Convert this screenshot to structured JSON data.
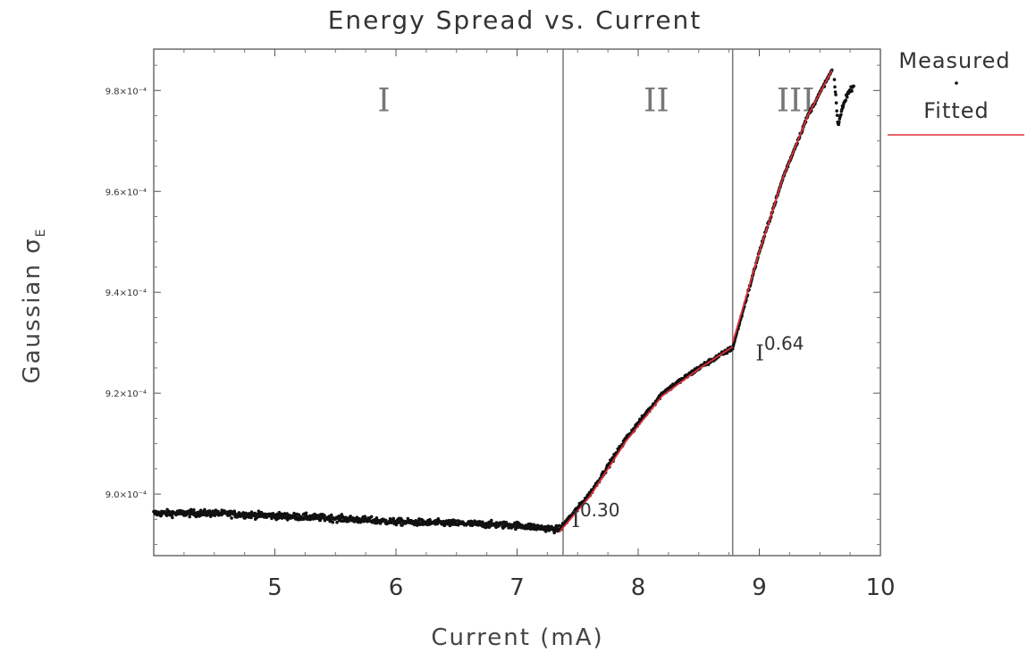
{
  "chart_data": {
    "type": "scatter",
    "title": "Energy Spread vs. Current",
    "xlabel": "Current (mA)",
    "ylabel_main": "Gaussian σ",
    "ylabel_sub": "E",
    "xlim": [
      4.0,
      10.0
    ],
    "ylim": [
      0.0008878,
      0.0009882
    ],
    "xticks": [
      5,
      6,
      7,
      8,
      9,
      10
    ],
    "xtick_labels": [
      "5",
      "6",
      "7",
      "8",
      "9",
      "10"
    ],
    "yticks": [
      0.0009,
      0.00092,
      0.00094,
      0.00096,
      0.00098
    ],
    "ytick_labels": [
      "9.0×10⁻⁴",
      "9.2×10⁻⁴",
      "9.4×10⁻⁴",
      "9.6×10⁻⁴",
      "9.8×10⁻⁴"
    ],
    "vlines": [
      7.38,
      8.78
    ],
    "regions": [
      {
        "label": "I",
        "x": 5.9,
        "y": 0.000978
      },
      {
        "label": "II",
        "x": 8.15,
        "y": 0.000978
      },
      {
        "label": "III",
        "x": 9.3,
        "y": 0.000978
      }
    ],
    "annotations": [
      {
        "base": "I",
        "exp": "0.30",
        "x": 7.45,
        "y": 0.0008935
      },
      {
        "base": "I",
        "exp": "0.64",
        "x": 8.97,
        "y": 0.0009265
      }
    ],
    "series": [
      {
        "name": "Measured",
        "kind": "points",
        "color": "#111111",
        "segments": [
          {
            "x": [
              4.0,
              4.5,
              5.0,
              5.5,
              6.0,
              6.5,
              7.0,
              7.35
            ],
            "y": [
              0.0008962,
              0.0008962,
              0.0008957,
              0.0008952,
              0.0008945,
              0.0008942,
              0.0008938,
              0.000893
            ],
            "noise": 3.5e-07
          },
          {
            "x": [
              7.35,
              7.6,
              7.9,
              8.2,
              8.5,
              8.78
            ],
            "y": [
              0.000893,
              0.0009,
              0.000911,
              0.00092,
              0.000925,
              0.000929
            ],
            "noise": 2.5e-07
          },
          {
            "x": [
              8.78,
              9.0,
              9.2,
              9.4,
              9.6
            ],
            "y": [
              0.000929,
              0.000948,
              0.000963,
              0.000975,
              0.000984
            ],
            "noise": 1.8e-07
          },
          {
            "x": [
              9.62,
              9.65,
              9.68,
              9.72,
              9.78
            ],
            "y": [
              0.000982,
              0.000973,
              0.000976,
              0.000979,
              0.000981
            ],
            "noise": 2.5e-07
          }
        ]
      },
      {
        "name": "Fitted",
        "kind": "line",
        "color": "#e0303a",
        "segments": [
          {
            "x": [
              7.35,
              7.6,
              7.9,
              8.2,
              8.5,
              8.78
            ],
            "y": [
              0.0008925,
              0.0008995,
              0.0009105,
              0.0009195,
              0.0009248,
              0.0009292
            ]
          },
          {
            "x": [
              8.78,
              9.0,
              9.2,
              9.4,
              9.6
            ],
            "y": [
              0.00093,
              0.000948,
              0.000963,
              0.000975,
              0.000984
            ]
          }
        ]
      }
    ],
    "legend": {
      "position": "right",
      "entries": [
        "Measured",
        "Fitted"
      ]
    }
  }
}
